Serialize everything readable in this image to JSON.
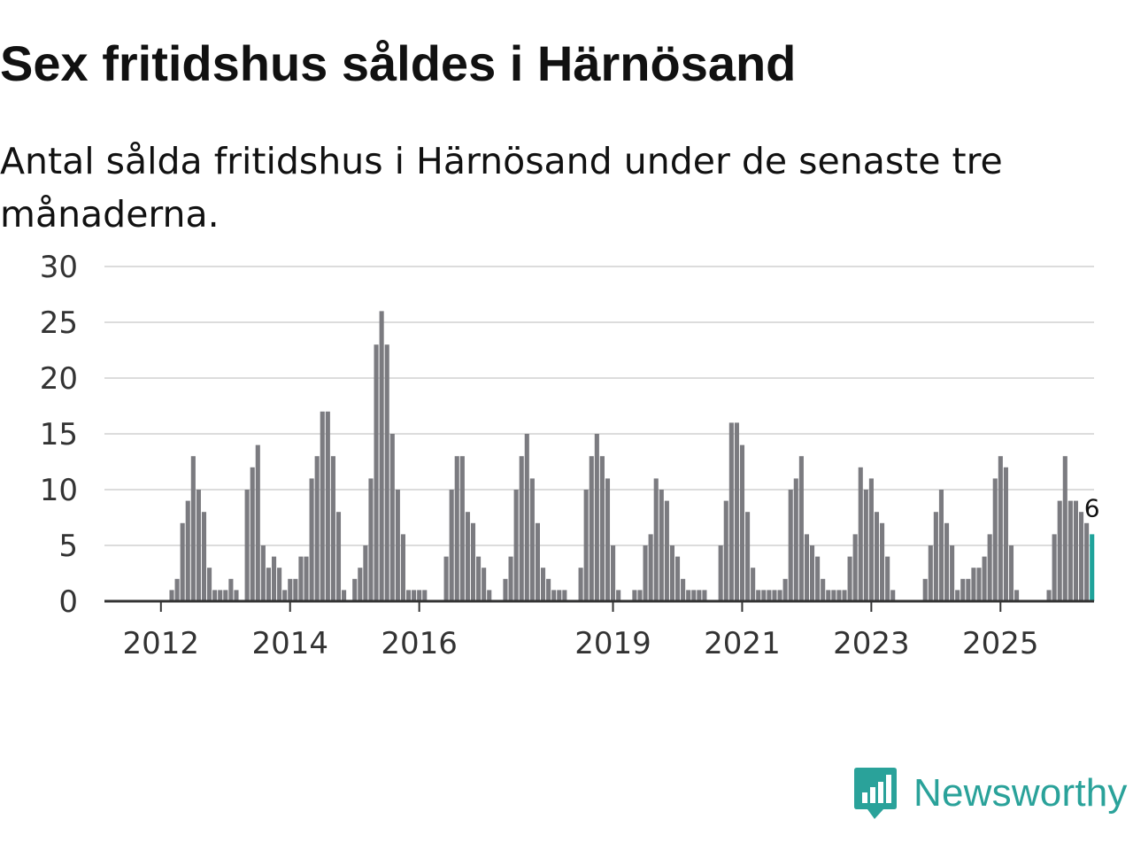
{
  "title": "Sex fritidshus såldes i Härnösand",
  "subtitle": "Antal sålda fritidshus i Härnösand under de senaste tre månaderna.",
  "brand": {
    "name": "Newsworthy",
    "icon": "newsworthy-logo-icon",
    "color": "#2aa29a"
  },
  "chart_data": {
    "type": "bar",
    "title": "Sex fritidshus såldes i Härnösand",
    "subtitle": "Antal sålda fritidshus i Härnösand under de senaste tre månaderna.",
    "xlabel": "",
    "ylabel": "",
    "ylim": [
      0,
      30
    ],
    "y_ticks": [
      0,
      5,
      10,
      15,
      20,
      25,
      30
    ],
    "x_tick_labels": [
      "2012",
      "2014",
      "2016",
      "2019",
      "2021",
      "2023",
      "2025"
    ],
    "x_tick_index": [
      10,
      34,
      58,
      94,
      118,
      142,
      166
    ],
    "grid": true,
    "colors": {
      "bar": "#7b7b80",
      "highlight": "#1fa39b",
      "grid": "#dcdcdc",
      "axis": "#333333"
    },
    "highlight_label": "6",
    "values": [
      0,
      0,
      0,
      0,
      0,
      0,
      0,
      0,
      0,
      0,
      0,
      0,
      1,
      2,
      7,
      9,
      13,
      10,
      8,
      3,
      1,
      1,
      1,
      2,
      1,
      0,
      10,
      12,
      14,
      5,
      3,
      4,
      3,
      1,
      2,
      2,
      4,
      4,
      11,
      13,
      17,
      17,
      13,
      8,
      1,
      0,
      2,
      3,
      5,
      11,
      23,
      26,
      23,
      15,
      10,
      6,
      1,
      1,
      1,
      1,
      0,
      0,
      0,
      4,
      10,
      13,
      13,
      8,
      7,
      4,
      3,
      1,
      0,
      0,
      2,
      4,
      10,
      13,
      15,
      11,
      7,
      3,
      2,
      1,
      1,
      1,
      0,
      0,
      3,
      10,
      13,
      15,
      13,
      11,
      5,
      1,
      0,
      0,
      1,
      1,
      5,
      6,
      11,
      10,
      9,
      5,
      4,
      2,
      1,
      1,
      1,
      1,
      0,
      0,
      5,
      9,
      16,
      16,
      14,
      8,
      3,
      1,
      1,
      1,
      1,
      1,
      2,
      10,
      11,
      13,
      6,
      5,
      4,
      2,
      1,
      1,
      1,
      1,
      4,
      6,
      12,
      10,
      11,
      8,
      7,
      4,
      1,
      0,
      0,
      0,
      0,
      0,
      2,
      5,
      8,
      10,
      7,
      5,
      1,
      2,
      2,
      3,
      3,
      4,
      6,
      11,
      13,
      12,
      5,
      1,
      0,
      0,
      0,
      0,
      0,
      1,
      6,
      9,
      13,
      9,
      9,
      8,
      7,
      6
    ]
  }
}
